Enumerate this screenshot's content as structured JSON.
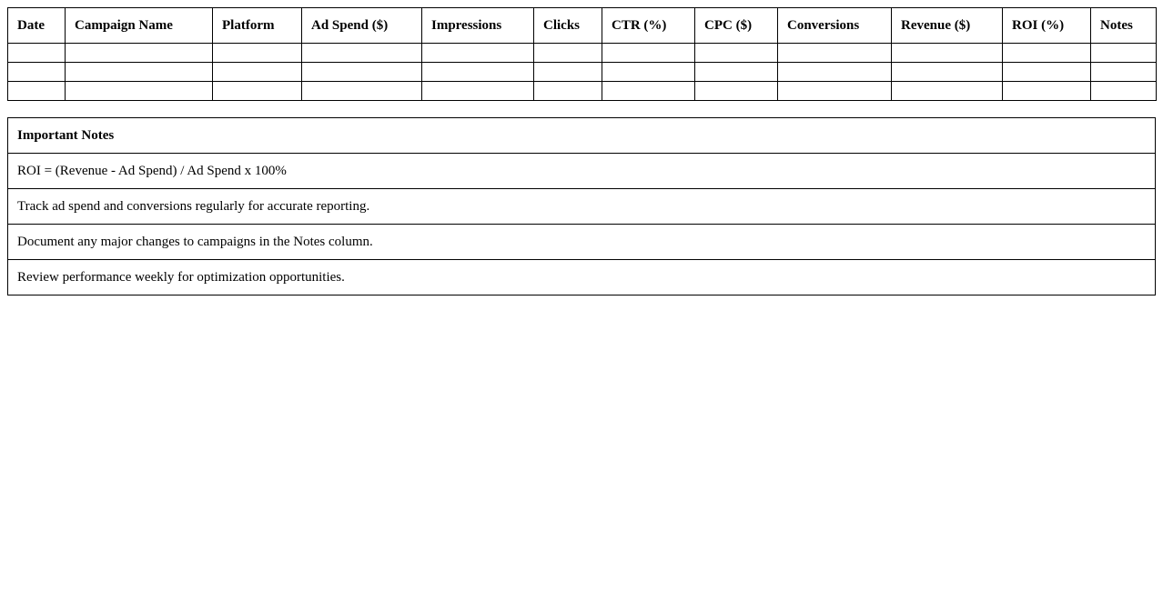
{
  "table": {
    "headers": [
      "Date",
      "Campaign Name",
      "Platform",
      "Ad Spend ($)",
      "Impressions",
      "Clicks",
      "CTR (%)",
      "CPC ($)",
      "Conversions",
      "Revenue ($)",
      "ROI (%)",
      "Notes"
    ],
    "empty_rows": 3
  },
  "notes": {
    "title": "Important Notes",
    "items": [
      "ROI = (Revenue - Ad Spend) / Ad Spend x 100%",
      "Track ad spend and conversions regularly for accurate reporting.",
      "Document any major changes to campaigns in the Notes column.",
      "Review performance weekly for optimization opportunities."
    ]
  }
}
